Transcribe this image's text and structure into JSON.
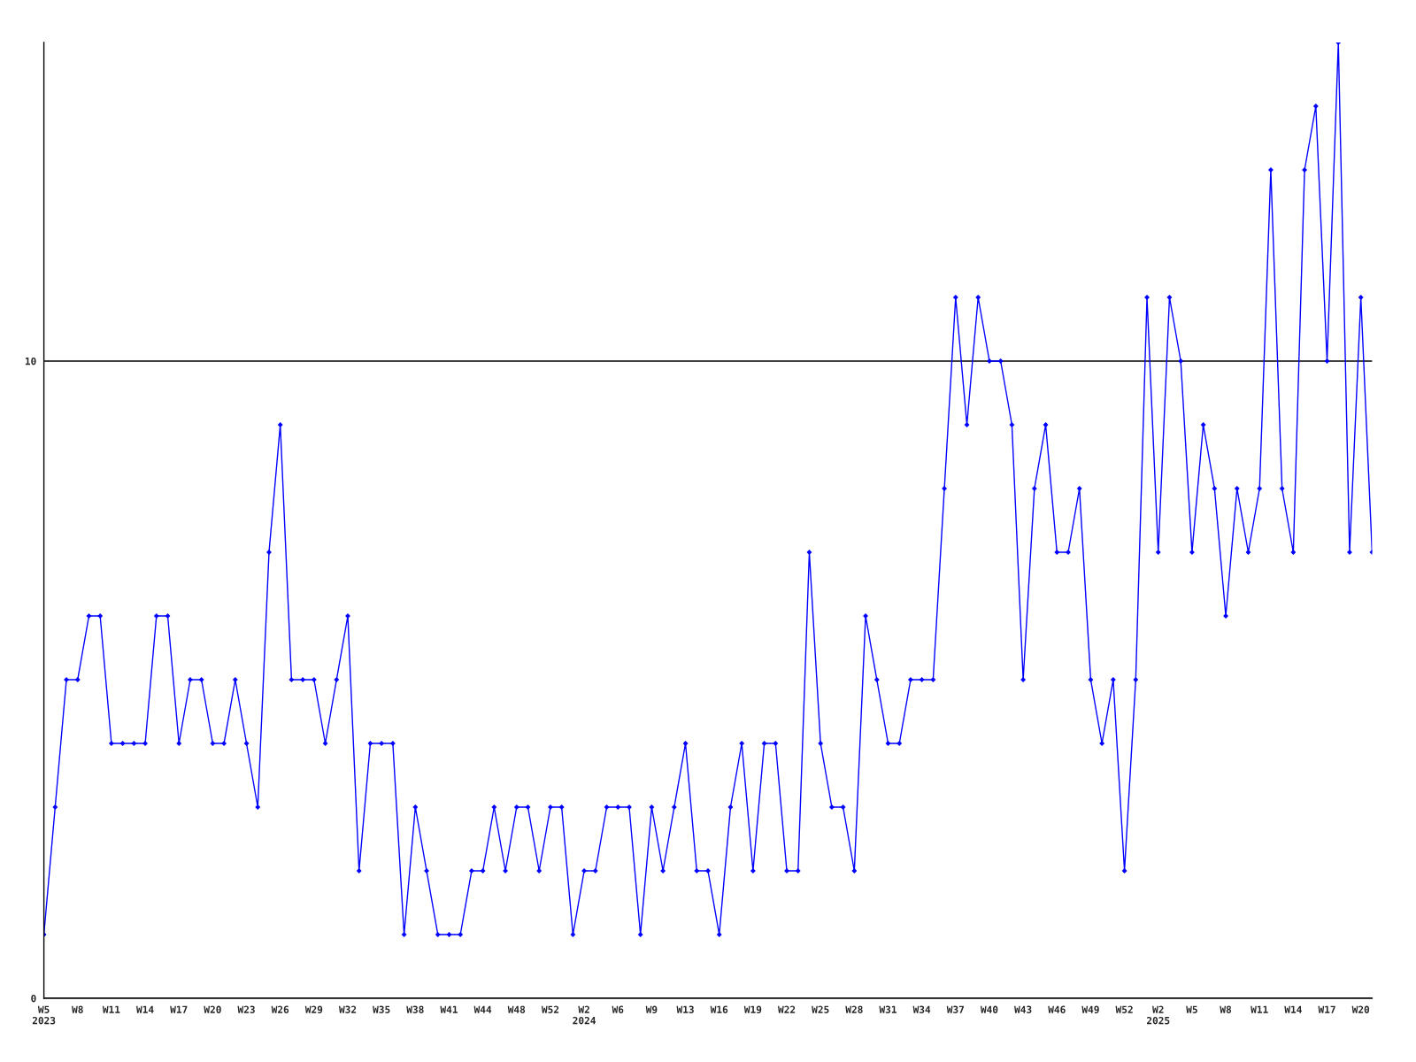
{
  "chart_data": {
    "type": "line",
    "categories": [
      "W5\n2023",
      null,
      null,
      "W8",
      null,
      null,
      "W11",
      null,
      null,
      "W14",
      null,
      null,
      "W17",
      null,
      null,
      "W20",
      null,
      null,
      "W23",
      null,
      null,
      "W26",
      null,
      null,
      "W29",
      null,
      null,
      "W32",
      null,
      null,
      "W35",
      null,
      null,
      "W38",
      null,
      null,
      "W41",
      null,
      null,
      "W44",
      null,
      null,
      "W48",
      null,
      null,
      "W52",
      null,
      null,
      "W2\n2024",
      null,
      null,
      "W6",
      null,
      null,
      "W9",
      null,
      null,
      "W13",
      null,
      null,
      "W16",
      null,
      null,
      "W19",
      null,
      null,
      "W22",
      null,
      null,
      "W25",
      null,
      null,
      "W28",
      null,
      null,
      "W31",
      null,
      null,
      "W34",
      null,
      null,
      "W37",
      null,
      null,
      "W40",
      null,
      null,
      "W43",
      null,
      null,
      "W46",
      null,
      null,
      "W49",
      null,
      null,
      "W52",
      null,
      null,
      "W2\n2025",
      null,
      null,
      "W5",
      null,
      null,
      "W8",
      null,
      null,
      "W11",
      null,
      null,
      "W14",
      null,
      null,
      "W17",
      null,
      null,
      "W20",
      null
    ],
    "series": [
      {
        "color": "#0000ff",
        "values": [
          1,
          3,
          5,
          5,
          6,
          6,
          4,
          4,
          4,
          4,
          6,
          6,
          4,
          5,
          5,
          4,
          4,
          5,
          4,
          3,
          7,
          9,
          5,
          5,
          5,
          4,
          5,
          6,
          2,
          4,
          4,
          4,
          1,
          3,
          2,
          1,
          1,
          1,
          2,
          2,
          3,
          2,
          3,
          3,
          2,
          3,
          3,
          1,
          2,
          2,
          3,
          3,
          3,
          1,
          3,
          2,
          3,
          4,
          2,
          2,
          1,
          3,
          4,
          2,
          4,
          4,
          2,
          2,
          7,
          4,
          3,
          3,
          2,
          6,
          5,
          4,
          4,
          5,
          5,
          5,
          8,
          11,
          9,
          11,
          10,
          10,
          9,
          5,
          8,
          9,
          7,
          7,
          8,
          5,
          4,
          5,
          2,
          5,
          11,
          7,
          11,
          10,
          7,
          9,
          8,
          6,
          8,
          7,
          8,
          13,
          8,
          7,
          13,
          14,
          10,
          15,
          7,
          11,
          7
        ]
      }
    ],
    "ylim": [
      0,
      15
    ],
    "yticks": [
      0,
      10
    ],
    "grid": "y",
    "marker": "diamond",
    "line_style": "solid"
  }
}
